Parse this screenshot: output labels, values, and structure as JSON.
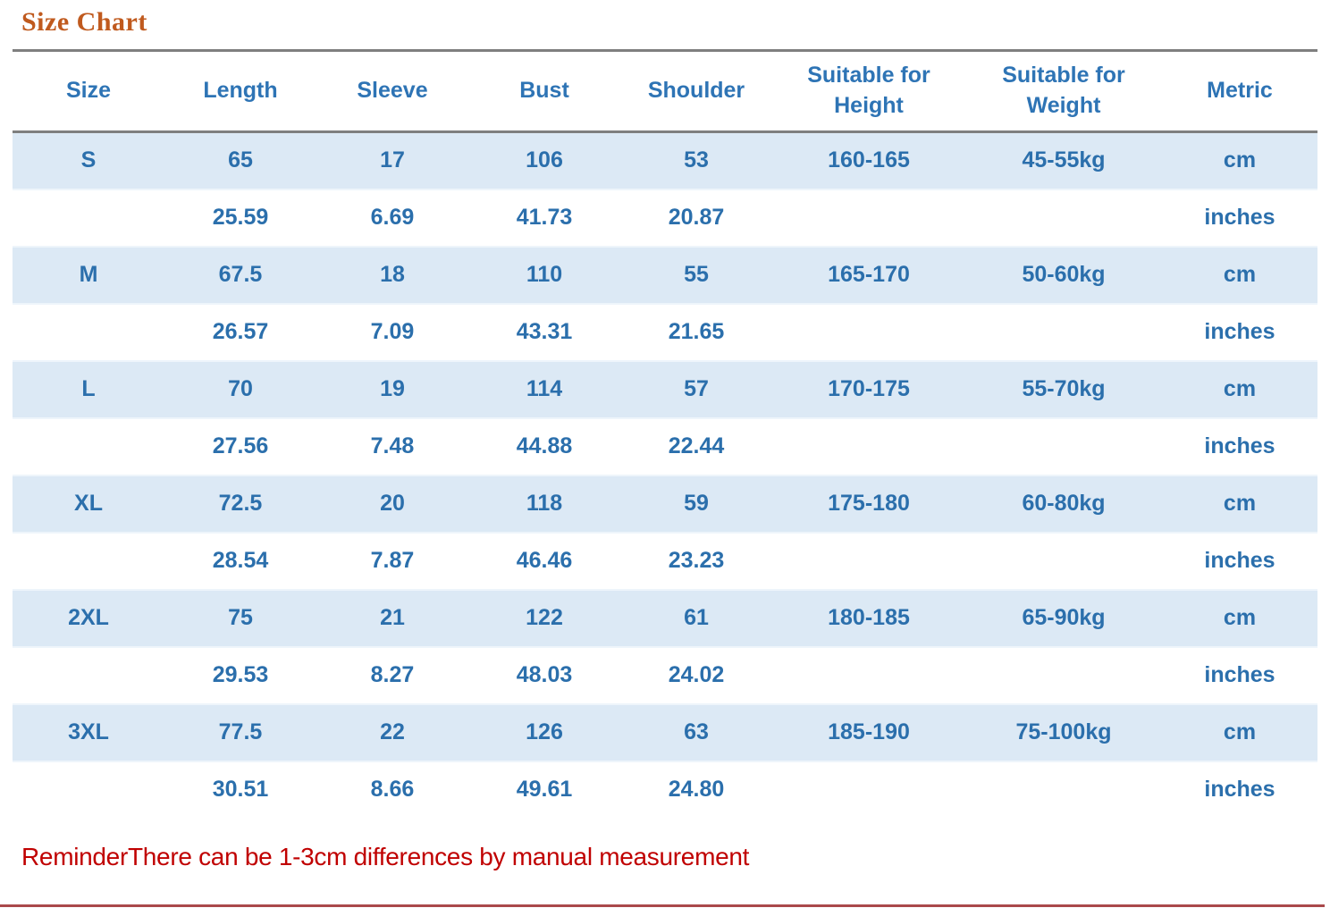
{
  "title": "Size Chart",
  "columns": [
    "Size",
    "Length",
    "Sleeve",
    "Bust",
    "Shoulder",
    "Suitable for Height",
    "Suitable for Weight",
    "Metric"
  ],
  "rows": [
    {
      "size": "S",
      "length": "65",
      "sleeve": "17",
      "bust": "106",
      "shoulder": "53",
      "height": "160-165",
      "weight": "45-55kg",
      "metric": "cm"
    },
    {
      "size": "",
      "length": "25.59",
      "sleeve": "6.69",
      "bust": "41.73",
      "shoulder": "20.87",
      "height": "",
      "weight": "",
      "metric": "inches"
    },
    {
      "size": "M",
      "length": "67.5",
      "sleeve": "18",
      "bust": "110",
      "shoulder": "55",
      "height": "165-170",
      "weight": "50-60kg",
      "metric": "cm"
    },
    {
      "size": "",
      "length": "26.57",
      "sleeve": "7.09",
      "bust": "43.31",
      "shoulder": "21.65",
      "height": "",
      "weight": "",
      "metric": "inches"
    },
    {
      "size": "L",
      "length": "70",
      "sleeve": "19",
      "bust": "114",
      "shoulder": "57",
      "height": "170-175",
      "weight": "55-70kg",
      "metric": "cm"
    },
    {
      "size": "",
      "length": "27.56",
      "sleeve": "7.48",
      "bust": "44.88",
      "shoulder": "22.44",
      "height": "",
      "weight": "",
      "metric": "inches"
    },
    {
      "size": "XL",
      "length": "72.5",
      "sleeve": "20",
      "bust": "118",
      "shoulder": "59",
      "height": "175-180",
      "weight": "60-80kg",
      "metric": "cm"
    },
    {
      "size": "",
      "length": "28.54",
      "sleeve": "7.87",
      "bust": "46.46",
      "shoulder": "23.23",
      "height": "",
      "weight": "",
      "metric": "inches"
    },
    {
      "size": "2XL",
      "length": "75",
      "sleeve": "21",
      "bust": "122",
      "shoulder": "61",
      "height": "180-185",
      "weight": "65-90kg",
      "metric": "cm"
    },
    {
      "size": "",
      "length": "29.53",
      "sleeve": "8.27",
      "bust": "48.03",
      "shoulder": "24.02",
      "height": "",
      "weight": "",
      "metric": "inches"
    },
    {
      "size": "3XL",
      "length": "77.5",
      "sleeve": "22",
      "bust": "126",
      "shoulder": "63",
      "height": "185-190",
      "weight": "75-100kg",
      "metric": "cm"
    },
    {
      "size": "",
      "length": "30.51",
      "sleeve": "8.66",
      "bust": "49.61",
      "shoulder": "24.80",
      "height": "",
      "weight": "",
      "metric": "inches"
    }
  ],
  "reminder": "ReminderThere can be 1-3cm differences by manual measurement",
  "colors": {
    "title": "#C05A1E",
    "header_text": "#2E74B5",
    "data_text": "#2B6FAC",
    "row_band": "#DCE9F5",
    "rule": "#7F7F7F",
    "reminder": "#C00000",
    "bottom_rule": "#951B1E"
  }
}
